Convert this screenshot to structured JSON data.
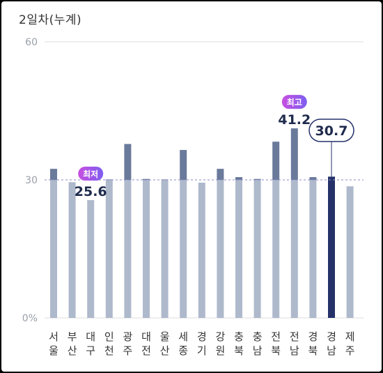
{
  "chart_data": {
    "type": "bar",
    "title": "2일차(누계)",
    "categories": [
      [
        "서",
        "울"
      ],
      [
        "부",
        "산"
      ],
      [
        "대",
        "구"
      ],
      [
        "인",
        "천"
      ],
      [
        "광",
        "주"
      ],
      [
        "대",
        "전"
      ],
      [
        "울",
        "산"
      ],
      [
        "세",
        "종"
      ],
      [
        "경",
        "기"
      ],
      [
        "강",
        "원"
      ],
      [
        "충",
        "북"
      ],
      [
        "충",
        "남"
      ],
      [
        "전",
        "북"
      ],
      [
        "전",
        "남"
      ],
      [
        "경",
        "북"
      ],
      [
        "경",
        "남"
      ],
      [
        "제",
        "주"
      ]
    ],
    "values": [
      32.4,
      29.5,
      25.6,
      30.1,
      37.8,
      30.2,
      30.1,
      36.5,
      29.4,
      32.4,
      30.6,
      30.2,
      38.3,
      41.2,
      30.6,
      30.7,
      28.6
    ],
    "y_ticks": [
      "0%",
      "30",
      "60"
    ],
    "ylim": [
      0,
      60
    ],
    "reference_line": 30,
    "highlight_index": 15,
    "highlight_label": "30.7",
    "min_annotation": {
      "index": 2,
      "badge": "최저",
      "value": "25.6"
    },
    "max_annotation": {
      "index": 13,
      "badge": "최고",
      "value": "41.2"
    },
    "colors": {
      "base_bar": "#aeb9cc",
      "above_avg": "#6a7a9b",
      "highlight": "#25326a",
      "grid": "#dddddd",
      "avg_line": "#8a87c4",
      "badge_start": "#c84ee0",
      "badge_end": "#7c5ef0",
      "label_text": "#1f2b4d"
    }
  }
}
